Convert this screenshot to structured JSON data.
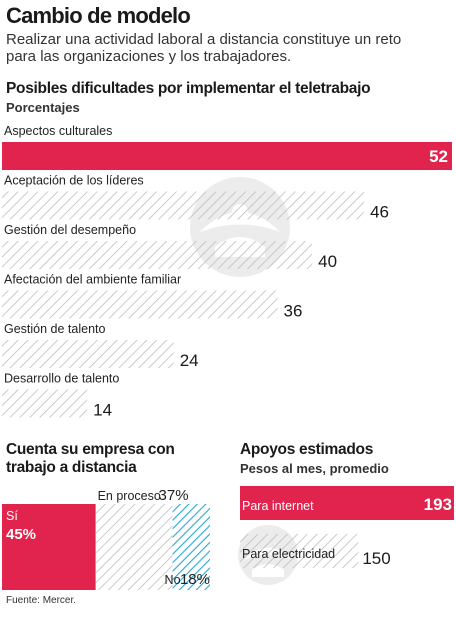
{
  "header": {
    "title": "Cambio de modelo",
    "subtitle": "Realizar una actividad laboral a distancia constituye un reto para las organizaciones y los trabajadores."
  },
  "colors": {
    "accent": "#e0244d",
    "hatch": "#bdbdbd",
    "blue_hatch": "#2aa7d6"
  },
  "chart_data": [
    {
      "type": "bar",
      "title": "Posibles dificultades por implementar el teletrabajo",
      "subtitle": "Porcentajes",
      "categories": [
        "Aspectos culturales",
        "Aceptación de los líderes",
        "Gestión del desempeño",
        "Afectación del ambiente familiar",
        "Gestión de talento",
        "Desarrollo de talento"
      ],
      "values": [
        52,
        46,
        40,
        36,
        24,
        14
      ],
      "highlight": "Aspectos culturales",
      "xlim": [
        0,
        52
      ]
    },
    {
      "type": "bar",
      "title": "Cuenta su empresa con trabajo a distancia",
      "categories": [
        "Sí",
        "En proceso",
        "No"
      ],
      "values": [
        45,
        37,
        18
      ],
      "value_labels": [
        "45%",
        "37%",
        "18%"
      ]
    },
    {
      "type": "bar",
      "title": "Apoyos estimados",
      "subtitle": "Pesos al mes, promedio",
      "categories": [
        "Para internet",
        "Para electricidad"
      ],
      "values": [
        193,
        150
      ],
      "xlim": [
        0,
        193
      ]
    }
  ],
  "footer": {
    "source": "Fuente: Mercer."
  }
}
